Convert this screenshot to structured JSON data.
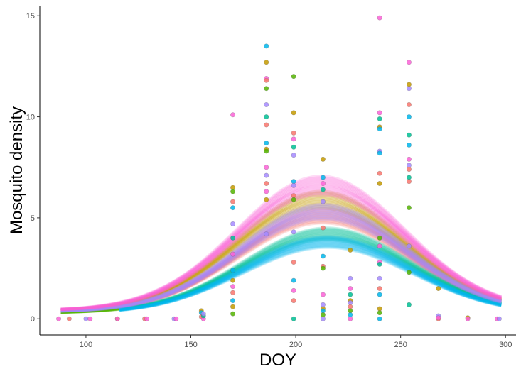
{
  "chart_data": {
    "type": "scatter",
    "title": "",
    "xlabel": "DOY",
    "ylabel": "Mosquito density",
    "xlim": [
      78,
      305
    ],
    "ylim": [
      -0.8,
      15.5
    ],
    "x_ticks": [
      100,
      150,
      200,
      250,
      300
    ],
    "x_tick_labels": [
      "100",
      "150",
      "200",
      "250",
      "300"
    ],
    "y_ticks": [
      0,
      5,
      10,
      15
    ],
    "y_tick_labels": [
      "0",
      "5",
      "10",
      "15"
    ],
    "grid": false,
    "legend": "none",
    "fitted_curves": [
      {
        "color": "#F8766D",
        "peak": 5.1,
        "base": 0.35,
        "center": 213,
        "width": 40,
        "start": 88,
        "end": 298
      },
      {
        "color": "#C49A00",
        "peak": 5.9,
        "base": 0.38,
        "center": 212,
        "width": 40,
        "start": 88,
        "end": 298
      },
      {
        "color": "#53B400",
        "peak": 4.4,
        "base": 0.3,
        "center": 214,
        "width": 40,
        "start": 88,
        "end": 116
      },
      {
        "color": "#00C094",
        "peak": 4.2,
        "base": 0.3,
        "center": 215,
        "width": 40,
        "start": 116,
        "end": 298
      },
      {
        "color": "#00B6EB",
        "peak": 3.8,
        "base": 0.28,
        "center": 215,
        "width": 40,
        "start": 116,
        "end": 298
      },
      {
        "color": "#A58AFF",
        "peak": 5.3,
        "base": 0.35,
        "center": 213,
        "width": 40,
        "start": 88,
        "end": 298
      },
      {
        "color": "#FB61D7",
        "peak": 6.6,
        "base": 0.42,
        "center": 212,
        "width": 40,
        "start": 88,
        "end": 298
      }
    ],
    "points": [
      [
        87,
        0,
        "#FB61D7"
      ],
      [
        92,
        0,
        "#F8766D"
      ],
      [
        100,
        0,
        "#A58AFF"
      ],
      [
        102,
        0,
        "#FB61D7"
      ],
      [
        115,
        0,
        "#C49A00"
      ],
      [
        115,
        0,
        "#FB61D7"
      ],
      [
        128,
        0,
        "#F8766D"
      ],
      [
        129,
        0,
        "#FB61D7"
      ],
      [
        142,
        0,
        "#A58AFF"
      ],
      [
        143,
        0,
        "#FB61D7"
      ],
      [
        155,
        0.4,
        "#C49A00"
      ],
      [
        155,
        0.3,
        "#00B6EB"
      ],
      [
        155,
        0.1,
        "#F8766D"
      ],
      [
        156,
        0,
        "#FB61D7"
      ],
      [
        156,
        0.15,
        "#00C094"
      ],
      [
        156,
        0.25,
        "#A58AFF"
      ],
      [
        170,
        6.5,
        "#C49A00"
      ],
      [
        170,
        6.3,
        "#53B400"
      ],
      [
        170,
        5.8,
        "#F8766D"
      ],
      [
        170,
        5.5,
        "#00B6EB"
      ],
      [
        170,
        4.7,
        "#A58AFF"
      ],
      [
        170,
        10.1,
        "#FB61D7"
      ],
      [
        170,
        4.0,
        "#00C094"
      ],
      [
        170,
        3.2,
        "#FB61D7"
      ],
      [
        170,
        2.4,
        "#00B6EB"
      ],
      [
        170,
        1.9,
        "#C49A00"
      ],
      [
        170,
        1.6,
        "#FB61D7"
      ],
      [
        170,
        1.3,
        "#F8766D"
      ],
      [
        170,
        0.9,
        "#00B6EB"
      ],
      [
        170,
        0.6,
        "#C49A00"
      ],
      [
        170,
        0.25,
        "#53B400"
      ],
      [
        186,
        13.5,
        "#00B6EB"
      ],
      [
        186,
        12.7,
        "#C49A00"
      ],
      [
        186,
        11.9,
        "#FB61D7"
      ],
      [
        186,
        11.8,
        "#F8766D"
      ],
      [
        186,
        11.4,
        "#53B400"
      ],
      [
        186,
        10.0,
        "#00C094"
      ],
      [
        186,
        9.6,
        "#F8766D"
      ],
      [
        186,
        8.7,
        "#00B6EB"
      ],
      [
        186,
        8.4,
        "#C49A00"
      ],
      [
        186,
        8.3,
        "#53B400"
      ],
      [
        186,
        7.5,
        "#FB61D7"
      ],
      [
        186,
        7.1,
        "#A58AFF"
      ],
      [
        186,
        6.7,
        "#F8766D"
      ],
      [
        186,
        6.3,
        "#FB61D7"
      ],
      [
        186,
        5.9,
        "#C49A00"
      ],
      [
        186,
        4.2,
        "#A58AFF"
      ],
      [
        186,
        10.6,
        "#A58AFF"
      ],
      [
        199,
        12.0,
        "#53B400"
      ],
      [
        199,
        10.2,
        "#C49A00"
      ],
      [
        199,
        9.2,
        "#F8766D"
      ],
      [
        199,
        8.9,
        "#FB61D7"
      ],
      [
        199,
        8.5,
        "#00C094"
      ],
      [
        199,
        8.1,
        "#A58AFF"
      ],
      [
        199,
        6.8,
        "#00B6EB"
      ],
      [
        199,
        6.6,
        "#A58AFF"
      ],
      [
        199,
        6.1,
        "#F8766D"
      ],
      [
        199,
        5.9,
        "#53B400"
      ],
      [
        199,
        4.3,
        "#A58AFF"
      ],
      [
        199,
        2.8,
        "#F8766D"
      ],
      [
        199,
        1.9,
        "#00B6EB"
      ],
      [
        199,
        1.4,
        "#FB61D7"
      ],
      [
        199,
        0.9,
        "#F8766D"
      ],
      [
        199,
        0.0,
        "#00C094"
      ],
      [
        213,
        7.9,
        "#C49A00"
      ],
      [
        213,
        7.0,
        "#00B6EB"
      ],
      [
        213,
        6.7,
        "#FB61D7"
      ],
      [
        213,
        6.4,
        "#00C094"
      ],
      [
        213,
        5.8,
        "#A58AFF"
      ],
      [
        213,
        4.5,
        "#F8766D"
      ],
      [
        213,
        3.1,
        "#00B6EB"
      ],
      [
        213,
        2.6,
        "#F8766D"
      ],
      [
        213,
        2.5,
        "#53B400"
      ],
      [
        213,
        1.2,
        "#FB61D7"
      ],
      [
        213,
        0.7,
        "#A58AFF"
      ],
      [
        213,
        0.5,
        "#C49A00"
      ],
      [
        213,
        0.4,
        "#00B6EB"
      ],
      [
        213,
        0.2,
        "#53B400"
      ],
      [
        213,
        0.0,
        "#A58AFF"
      ],
      [
        226,
        3.4,
        "#C49A00"
      ],
      [
        226,
        2.0,
        "#A58AFF"
      ],
      [
        226,
        1.5,
        "#FB61D7"
      ],
      [
        226,
        1.2,
        "#00C094"
      ],
      [
        226,
        0.9,
        "#C49A00"
      ],
      [
        226,
        0.8,
        "#A58AFF"
      ],
      [
        226,
        0.6,
        "#F8766D"
      ],
      [
        226,
        0.4,
        "#53B400"
      ],
      [
        226,
        0.2,
        "#00B6EB"
      ],
      [
        226,
        0.0,
        "#FB61D7"
      ],
      [
        240,
        14.9,
        "#FB61D7"
      ],
      [
        240,
        10.2,
        "#FB61D7"
      ],
      [
        240,
        9.9,
        "#00C094"
      ],
      [
        240,
        9.5,
        "#C49A00"
      ],
      [
        240,
        9.4,
        "#00B6EB"
      ],
      [
        240,
        8.3,
        "#A58AFF"
      ],
      [
        240,
        8.2,
        "#00B6EB"
      ],
      [
        240,
        7.2,
        "#F8766D"
      ],
      [
        240,
        6.7,
        "#C49A00"
      ],
      [
        240,
        4.0,
        "#53B400"
      ],
      [
        240,
        3.6,
        "#FB61D7"
      ],
      [
        240,
        2.8,
        "#FB61D7"
      ],
      [
        240,
        2.7,
        "#00C094"
      ],
      [
        240,
        2.0,
        "#A58AFF"
      ],
      [
        240,
        1.5,
        "#F8766D"
      ],
      [
        240,
        1.2,
        "#00B6EB"
      ],
      [
        240,
        0.5,
        "#C49A00"
      ],
      [
        240,
        0.3,
        "#53B400"
      ],
      [
        240,
        0.0,
        "#00B6EB"
      ],
      [
        254,
        12.7,
        "#FB61D7"
      ],
      [
        254,
        11.6,
        "#C49A00"
      ],
      [
        254,
        11.4,
        "#A58AFF"
      ],
      [
        254,
        10.6,
        "#F8766D"
      ],
      [
        254,
        10.0,
        "#00B6EB"
      ],
      [
        254,
        9.1,
        "#00C094"
      ],
      [
        254,
        8.6,
        "#00B6EB"
      ],
      [
        254,
        7.9,
        "#FB61D7"
      ],
      [
        254,
        7.6,
        "#A58AFF"
      ],
      [
        254,
        7.4,
        "#F8766D"
      ],
      [
        254,
        7.0,
        "#00C094"
      ],
      [
        254,
        6.8,
        "#F8766D"
      ],
      [
        254,
        5.5,
        "#53B400"
      ],
      [
        254,
        3.6,
        "#A58AFF"
      ],
      [
        254,
        2.3,
        "#53B400"
      ],
      [
        254,
        0.7,
        "#00C094"
      ],
      [
        268,
        1.5,
        "#C49A00"
      ],
      [
        268,
        0.15,
        "#A58AFF"
      ],
      [
        268,
        0.0,
        "#F8766D"
      ],
      [
        268,
        0.05,
        "#FB61D7"
      ],
      [
        282,
        0.05,
        "#C49A00"
      ],
      [
        282,
        0.0,
        "#FB61D7"
      ],
      [
        296,
        0.0,
        "#FB61D7"
      ],
      [
        297,
        0.0,
        "#A58AFF"
      ]
    ]
  }
}
